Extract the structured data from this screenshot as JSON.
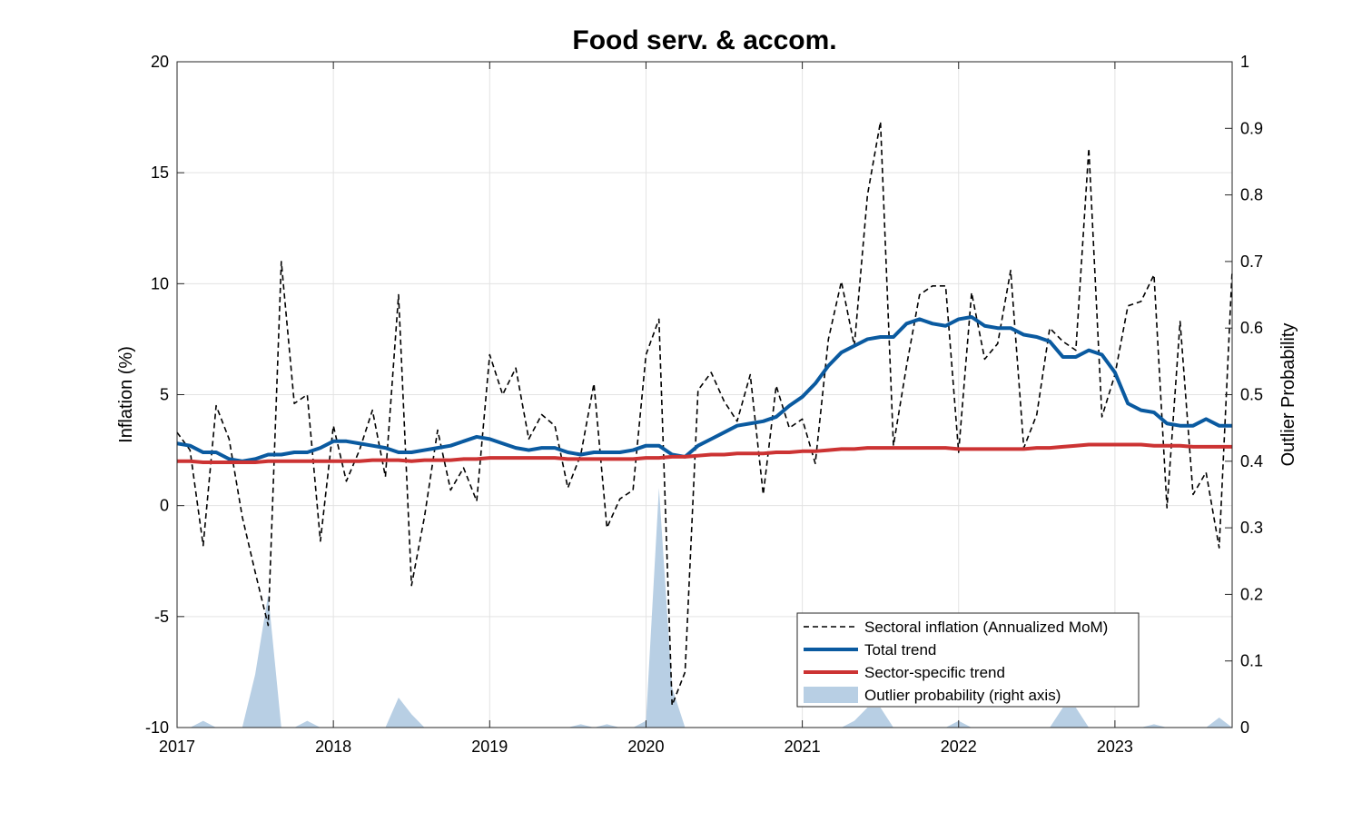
{
  "chart_data": {
    "type": "line",
    "title": "Food serv. & accom.",
    "ylabel": "Inflation (%)",
    "y2label": "Outlier Probability",
    "xlim": [
      2017.0,
      2023.75
    ],
    "ylim": [
      -10,
      20
    ],
    "y2lim": [
      0,
      1
    ],
    "x_ticks": [
      2017,
      2018,
      2019,
      2020,
      2021,
      2022,
      2023
    ],
    "x_tick_labels": [
      "2017",
      "2018",
      "2019",
      "2020",
      "2021",
      "2022",
      "2023"
    ],
    "y_ticks": [
      -10,
      -5,
      0,
      5,
      10,
      15,
      20
    ],
    "y_tick_labels": [
      "-10",
      "-5",
      "0",
      "5",
      "10",
      "15",
      "20"
    ],
    "y2_ticks": [
      0,
      0.1,
      0.2,
      0.3,
      0.4,
      0.5,
      0.6,
      0.7,
      0.8,
      0.9,
      1
    ],
    "y2_tick_labels": [
      "0",
      "0.1",
      "0.2",
      "0.3",
      "0.4",
      "0.5",
      "0.6",
      "0.7",
      "0.8",
      "0.9",
      "1"
    ],
    "grid": true,
    "legend_position": "bottom-right",
    "x": [
      2017.0,
      2017.083,
      2017.167,
      2017.25,
      2017.333,
      2017.417,
      2017.5,
      2017.583,
      2017.667,
      2017.75,
      2017.833,
      2017.917,
      2018.0,
      2018.083,
      2018.167,
      2018.25,
      2018.333,
      2018.417,
      2018.5,
      2018.583,
      2018.667,
      2018.75,
      2018.833,
      2018.917,
      2019.0,
      2019.083,
      2019.167,
      2019.25,
      2019.333,
      2019.417,
      2019.5,
      2019.583,
      2019.667,
      2019.75,
      2019.833,
      2019.917,
      2020.0,
      2020.083,
      2020.167,
      2020.25,
      2020.333,
      2020.417,
      2020.5,
      2020.583,
      2020.667,
      2020.75,
      2020.833,
      2020.917,
      2021.0,
      2021.083,
      2021.167,
      2021.25,
      2021.333,
      2021.417,
      2021.5,
      2021.583,
      2021.667,
      2021.75,
      2021.833,
      2021.917,
      2022.0,
      2022.083,
      2022.167,
      2022.25,
      2022.333,
      2022.417,
      2022.5,
      2022.583,
      2022.667,
      2022.75,
      2022.833,
      2022.917,
      2023.0,
      2023.083,
      2023.167,
      2023.25,
      2023.333,
      2023.417,
      2023.5,
      2023.583,
      2023.667,
      2023.75
    ],
    "series": [
      {
        "name": "Sectoral inflation (Annualized MoM)",
        "axis": "left",
        "style": "dashed",
        "color": "#000000",
        "values": [
          3.3,
          2.5,
          -1.8,
          4.5,
          3.0,
          -0.5,
          -3.0,
          -5.4,
          11.0,
          4.6,
          5.0,
          -1.6,
          3.6,
          1.1,
          2.5,
          4.3,
          1.3,
          9.5,
          -3.6,
          -0.5,
          3.4,
          0.7,
          1.7,
          0.2,
          6.8,
          5.0,
          6.2,
          3.0,
          4.1,
          3.6,
          0.8,
          2.3,
          5.5,
          -1.0,
          0.3,
          0.7,
          6.8,
          8.4,
          -9.0,
          -7.5,
          5.2,
          6.0,
          4.7,
          3.8,
          5.9,
          0.5,
          5.4,
          3.5,
          3.9,
          1.9,
          7.5,
          10.1,
          7.2,
          14.0,
          17.3,
          2.7,
          6.3,
          9.5,
          9.9,
          9.9,
          2.4,
          9.6,
          6.6,
          7.3,
          10.6,
          2.6,
          4.1,
          8.0,
          7.4,
          7.0,
          16.1,
          4.0,
          5.9,
          9.0,
          9.2,
          10.4,
          -0.1,
          8.3,
          0.5,
          1.5,
          -1.9,
          10.6
        ]
      },
      {
        "name": "Total trend",
        "axis": "left",
        "style": "solid",
        "color": "#0a5aa0",
        "values": [
          2.8,
          2.7,
          2.4,
          2.4,
          2.1,
          2.0,
          2.1,
          2.3,
          2.3,
          2.4,
          2.4,
          2.6,
          2.9,
          2.9,
          2.8,
          2.7,
          2.6,
          2.4,
          2.4,
          2.5,
          2.6,
          2.7,
          2.9,
          3.1,
          3.0,
          2.8,
          2.6,
          2.5,
          2.6,
          2.6,
          2.4,
          2.3,
          2.4,
          2.4,
          2.4,
          2.5,
          2.7,
          2.7,
          2.3,
          2.2,
          2.7,
          3.0,
          3.3,
          3.6,
          3.7,
          3.8,
          4.0,
          4.5,
          4.9,
          5.5,
          6.3,
          6.9,
          7.2,
          7.5,
          7.6,
          7.6,
          8.2,
          8.4,
          8.2,
          8.1,
          8.4,
          8.5,
          8.1,
          8.0,
          8.0,
          7.7,
          7.6,
          7.4,
          6.7,
          6.7,
          7.0,
          6.8,
          6.0,
          4.6,
          4.3,
          4.2,
          3.7,
          3.6,
          3.6,
          3.9,
          3.6,
          3.6
        ]
      },
      {
        "name": "Sector-specific trend",
        "axis": "left",
        "style": "solid",
        "color": "#cc3333",
        "values": [
          2.0,
          2.0,
          1.95,
          1.95,
          1.95,
          1.95,
          1.95,
          2.0,
          2.0,
          2.0,
          2.0,
          2.0,
          2.0,
          2.0,
          2.0,
          2.05,
          2.05,
          2.05,
          2.0,
          2.05,
          2.05,
          2.05,
          2.1,
          2.1,
          2.15,
          2.15,
          2.15,
          2.15,
          2.15,
          2.15,
          2.1,
          2.1,
          2.1,
          2.1,
          2.1,
          2.1,
          2.15,
          2.15,
          2.2,
          2.2,
          2.25,
          2.3,
          2.3,
          2.35,
          2.35,
          2.35,
          2.4,
          2.4,
          2.45,
          2.45,
          2.5,
          2.55,
          2.55,
          2.6,
          2.6,
          2.6,
          2.6,
          2.6,
          2.6,
          2.6,
          2.55,
          2.55,
          2.55,
          2.55,
          2.55,
          2.55,
          2.6,
          2.6,
          2.65,
          2.7,
          2.75,
          2.75,
          2.75,
          2.75,
          2.75,
          2.7,
          2.7,
          2.7,
          2.65,
          2.65,
          2.65,
          2.65
        ]
      },
      {
        "name": "Outlier probability (right axis)",
        "axis": "right",
        "style": "area",
        "color": "#b8cfe4",
        "values": [
          0.0,
          0.0,
          0.01,
          0.0,
          0.0,
          0.0,
          0.08,
          0.2,
          0.0,
          0.0,
          0.01,
          0.0,
          0.0,
          0.0,
          0.0,
          0.0,
          0.0,
          0.045,
          0.02,
          0.0,
          0.0,
          0.0,
          0.0,
          0.0,
          0.0,
          0.0,
          0.0,
          0.0,
          0.0,
          0.0,
          0.0,
          0.005,
          0.0,
          0.005,
          0.0,
          0.0,
          0.01,
          0.36,
          0.06,
          0.0,
          0.0,
          0.0,
          0.0,
          0.0,
          0.0,
          0.0,
          0.0,
          0.0,
          0.0,
          0.0,
          0.0,
          0.0,
          0.01,
          0.03,
          0.03,
          0.0,
          0.0,
          0.0,
          0.0,
          0.0,
          0.01,
          0.0,
          0.0,
          0.0,
          0.0,
          0.0,
          0.0,
          0.0,
          0.03,
          0.03,
          0.0,
          0.0,
          0.0,
          0.0,
          0.0,
          0.005,
          0.0,
          0.0,
          0.0,
          0.0,
          0.015,
          0.0
        ]
      }
    ]
  }
}
